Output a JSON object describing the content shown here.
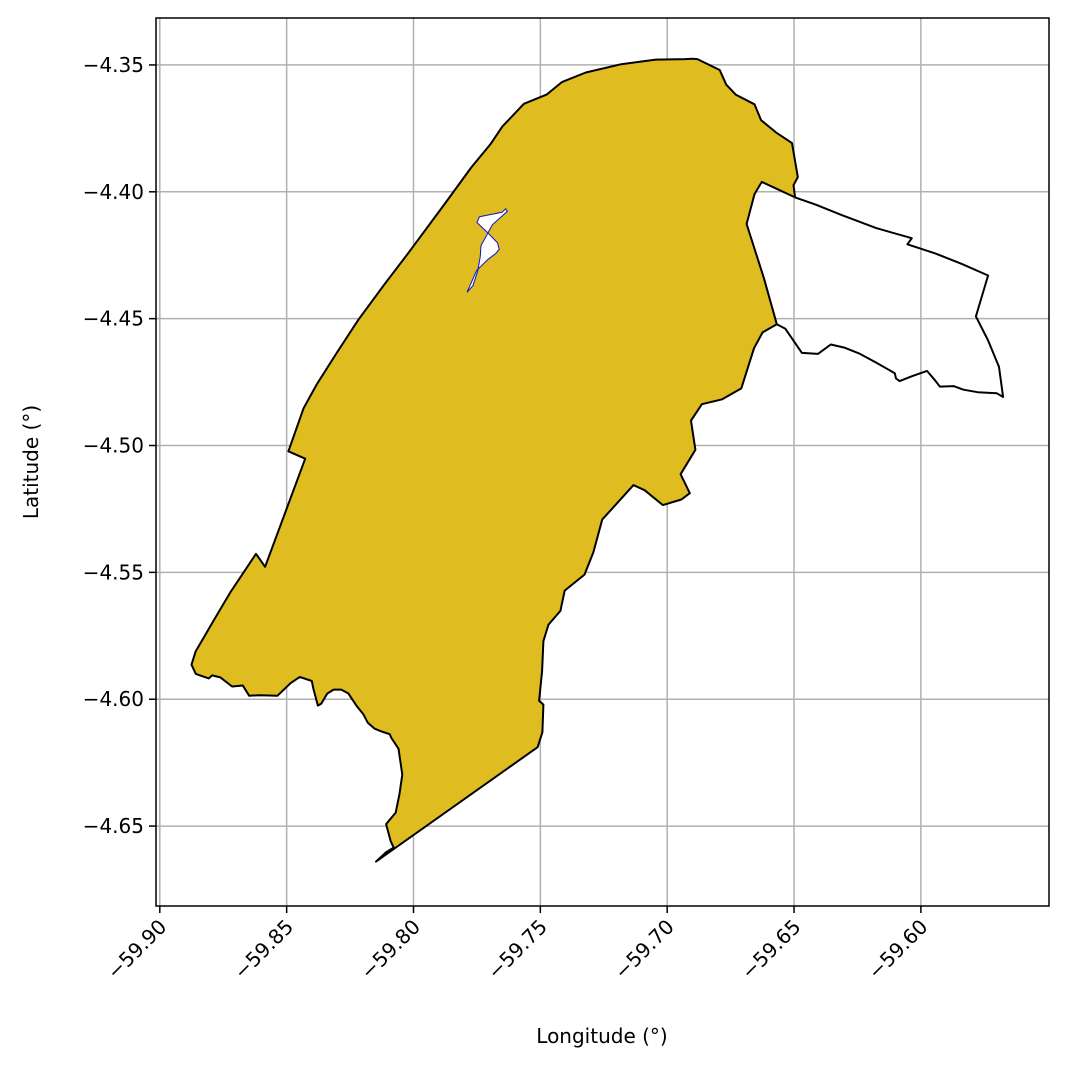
{
  "chart_data": {
    "type": "map",
    "xlabel": "Longitude (°)",
    "ylabel": "Latitude (°)",
    "xlim": [
      -59.9015,
      -59.5495
    ],
    "ylim": [
      -4.6815,
      -4.3315
    ],
    "xticks": [
      {
        "value": -59.9,
        "label": "−59.90"
      },
      {
        "value": -59.85,
        "label": "−59.85"
      },
      {
        "value": -59.8,
        "label": "−59.80"
      },
      {
        "value": -59.75,
        "label": "−59.75"
      },
      {
        "value": -59.7,
        "label": "−59.70"
      },
      {
        "value": -59.65,
        "label": "−59.65"
      },
      {
        "value": -59.6,
        "label": "−59.60"
      }
    ],
    "yticks": [
      {
        "value": -4.35,
        "label": "−4.35"
      },
      {
        "value": -4.4,
        "label": "−4.40"
      },
      {
        "value": -4.45,
        "label": "−4.45"
      },
      {
        "value": -4.5,
        "label": "−4.50"
      },
      {
        "value": -4.55,
        "label": "−4.55"
      },
      {
        "value": -4.6,
        "label": "−4.60"
      },
      {
        "value": -4.65,
        "label": "−4.65"
      }
    ],
    "grid": true,
    "colors": {
      "fill": "#dfbd20",
      "outline": "#000000",
      "inner_outline": "#1010cc",
      "grid": "#b0b0b0"
    },
    "regions": [
      {
        "role": "filled-area",
        "points": [
          [
            -59.8148,
            -4.664
          ],
          [
            -59.8108,
            -4.6603
          ],
          [
            -59.8078,
            -4.6585
          ],
          [
            -59.809,
            -4.656
          ],
          [
            -59.8108,
            -4.6492
          ],
          [
            -59.807,
            -4.6447
          ],
          [
            -59.8055,
            -4.6373
          ],
          [
            -59.8044,
            -4.6297
          ],
          [
            -59.8059,
            -4.6195
          ],
          [
            -59.8087,
            -4.6153
          ],
          [
            -59.8094,
            -4.6138
          ],
          [
            -59.8129,
            -4.6126
          ],
          [
            -59.8153,
            -4.6116
          ],
          [
            -59.818,
            -4.6093
          ],
          [
            -59.8198,
            -4.6059
          ],
          [
            -59.8225,
            -4.6025
          ],
          [
            -59.8257,
            -4.5977
          ],
          [
            -59.8285,
            -4.5962
          ],
          [
            -59.8315,
            -4.5962
          ],
          [
            -59.834,
            -4.5978
          ],
          [
            -59.8363,
            -4.6017
          ],
          [
            -59.8377,
            -4.6025
          ],
          [
            -59.8394,
            -4.5961
          ],
          [
            -59.8401,
            -4.5928
          ],
          [
            -59.8448,
            -4.5912
          ],
          [
            -59.8485,
            -4.5937
          ],
          [
            -59.8536,
            -4.5986
          ],
          [
            -59.8586,
            -4.5985
          ],
          [
            -59.8611,
            -4.5984
          ],
          [
            -59.8648,
            -4.5986
          ],
          [
            -59.8673,
            -4.5946
          ],
          [
            -59.8715,
            -4.595
          ],
          [
            -59.8743,
            -4.5928
          ],
          [
            -59.8761,
            -4.5914
          ],
          [
            -59.8794,
            -4.5906
          ],
          [
            -59.8807,
            -4.5918
          ],
          [
            -59.8858,
            -4.59
          ],
          [
            -59.8875,
            -4.5864
          ],
          [
            -59.8859,
            -4.5812
          ],
          [
            -59.8788,
            -4.569
          ],
          [
            -59.8721,
            -4.5577
          ],
          [
            -59.8621,
            -4.5427
          ],
          [
            -59.8585,
            -4.5478
          ],
          [
            -59.8427,
            -4.5052
          ],
          [
            -59.8493,
            -4.5023
          ],
          [
            -59.8433,
            -4.4853
          ],
          [
            -59.8382,
            -4.476
          ],
          [
            -59.8304,
            -4.4637
          ],
          [
            -59.8217,
            -4.4504
          ],
          [
            -59.8117,
            -4.4368
          ],
          [
            -59.8021,
            -4.4242
          ],
          [
            -59.7876,
            -4.4046
          ],
          [
            -59.7772,
            -4.3904
          ],
          [
            -59.7697,
            -4.3813
          ],
          [
            -59.765,
            -4.3743
          ],
          [
            -59.7565,
            -4.3653
          ],
          [
            -59.7474,
            -4.3616
          ],
          [
            -59.7414,
            -4.3567
          ],
          [
            -59.7321,
            -4.353
          ],
          [
            -59.7181,
            -4.3497
          ],
          [
            -59.7045,
            -4.3479
          ],
          [
            -59.6929,
            -4.3477
          ],
          [
            -59.6901,
            -4.3476
          ],
          [
            -59.6881,
            -4.3477
          ],
          [
            -59.6793,
            -4.352
          ],
          [
            -59.6767,
            -4.3578
          ],
          [
            -59.673,
            -4.3617
          ],
          [
            -59.6656,
            -4.3655
          ],
          [
            -59.663,
            -4.3718
          ],
          [
            -59.6571,
            -4.3766
          ],
          [
            -59.6508,
            -4.3808
          ],
          [
            -59.6485,
            -4.3942
          ],
          [
            -59.6502,
            -4.3974
          ],
          [
            -59.6496,
            -4.4022
          ],
          [
            -59.6627,
            -4.3961
          ],
          [
            -59.6656,
            -4.4009
          ],
          [
            -59.6687,
            -4.4127
          ],
          [
            -59.6619,
            -4.4339
          ],
          [
            -59.6568,
            -4.4522
          ],
          [
            -59.6624,
            -4.4554
          ],
          [
            -59.6658,
            -4.4617
          ],
          [
            -59.6708,
            -4.4775
          ],
          [
            -59.6783,
            -4.4818
          ],
          [
            -59.6863,
            -4.4837
          ],
          [
            -59.6906,
            -4.4902
          ],
          [
            -59.6889,
            -4.5017
          ],
          [
            -59.6947,
            -4.5113
          ],
          [
            -59.6911,
            -4.5188
          ],
          [
            -59.6944,
            -4.5213
          ],
          [
            -59.7017,
            -4.5235
          ],
          [
            -59.7089,
            -4.5176
          ],
          [
            -59.7133,
            -4.5156
          ],
          [
            -59.7256,
            -4.5292
          ],
          [
            -59.7291,
            -4.5421
          ],
          [
            -59.7326,
            -4.5509
          ],
          [
            -59.7404,
            -4.5572
          ],
          [
            -59.7421,
            -4.5652
          ],
          [
            -59.7468,
            -4.5706
          ],
          [
            -59.7488,
            -4.5771
          ],
          [
            -59.7493,
            -4.5888
          ],
          [
            -59.7505,
            -4.6006
          ],
          [
            -59.7488,
            -4.6021
          ],
          [
            -59.7492,
            -4.613
          ],
          [
            -59.7511,
            -4.6189
          ]
        ]
      },
      {
        "role": "hole",
        "points": [
          [
            -59.774,
            -4.4098
          ],
          [
            -59.7651,
            -4.4081
          ],
          [
            -59.7637,
            -4.4067
          ],
          [
            -59.763,
            -4.4077
          ],
          [
            -59.7689,
            -4.413
          ],
          [
            -59.7734,
            -4.4212
          ],
          [
            -59.7737,
            -4.4257
          ],
          [
            -59.7747,
            -4.4313
          ],
          [
            -59.7766,
            -4.437
          ],
          [
            -59.7789,
            -4.4396
          ],
          [
            -59.7751,
            -4.431
          ],
          [
            -59.7706,
            -4.4266
          ],
          [
            -59.7675,
            -4.4243
          ],
          [
            -59.7662,
            -4.4226
          ],
          [
            -59.7669,
            -4.4201
          ],
          [
            -59.7708,
            -4.4161
          ],
          [
            -59.775,
            -4.4121
          ]
        ]
      },
      {
        "role": "outside-area",
        "points": [
          [
            -59.6496,
            -4.4022
          ],
          [
            -59.6414,
            -4.4051
          ],
          [
            -59.6312,
            -4.4092
          ],
          [
            -59.6176,
            -4.4143
          ],
          [
            -59.6036,
            -4.4183
          ],
          [
            -59.6053,
            -4.4207
          ],
          [
            -59.5943,
            -4.4243
          ],
          [
            -59.584,
            -4.4284
          ],
          [
            -59.5735,
            -4.433
          ],
          [
            -59.5783,
            -4.4491
          ],
          [
            -59.5736,
            -4.4584
          ],
          [
            -59.5692,
            -4.469
          ],
          [
            -59.5676,
            -4.4809
          ],
          [
            -59.5701,
            -4.4794
          ],
          [
            -59.5776,
            -4.479
          ],
          [
            -59.5832,
            -4.478
          ],
          [
            -59.5871,
            -4.4766
          ],
          [
            -59.5925,
            -4.4768
          ],
          [
            -59.5946,
            -4.4741
          ],
          [
            -59.5976,
            -4.4706
          ],
          [
            -59.6035,
            -4.4727
          ],
          [
            -59.6084,
            -4.4746
          ],
          [
            -59.6098,
            -4.4736
          ],
          [
            -59.6103,
            -4.4715
          ],
          [
            -59.6179,
            -4.4672
          ],
          [
            -59.6241,
            -4.4638
          ],
          [
            -59.6302,
            -4.4614
          ],
          [
            -59.6355,
            -4.4602
          ],
          [
            -59.6406,
            -4.4639
          ],
          [
            -59.6469,
            -4.4635
          ],
          [
            -59.6534,
            -4.454
          ],
          [
            -59.6568,
            -4.4522
          ]
        ]
      }
    ]
  }
}
